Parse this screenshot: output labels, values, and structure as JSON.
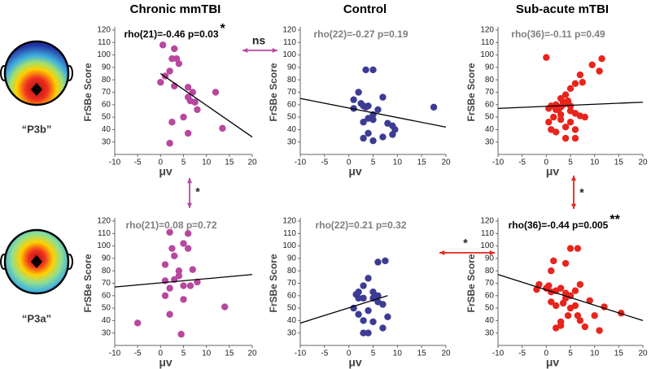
{
  "figure": {
    "labels": [
      "“P3b”",
      "“P3a”"
    ],
    "annotations": [
      {
        "text": "ns",
        "color": "#b8479e"
      },
      {
        "text": "*",
        "color": "#b8479e"
      },
      {
        "text": "*",
        "color": "#e8241c"
      },
      {
        "text": "*",
        "color": "#e8241c"
      }
    ]
  },
  "chart_data": [
    {
      "type": "scatter",
      "title": "Chronic mmTBI",
      "subtitle": "rho(21)=-0.46 p=0.03",
      "stat_mark": "*",
      "stat_color": "#000000",
      "x_label": "μv",
      "y_label": "FrSBe Score",
      "color": "#b8479e",
      "x": [
        0.5,
        3,
        2.5,
        3.5,
        4,
        1,
        2,
        0,
        3,
        6,
        7,
        6,
        6.5,
        7.5,
        8,
        5,
        12,
        13.5,
        2.5,
        2,
        6
      ],
      "values": [
        108,
        105,
        97,
        97,
        93,
        83,
        87,
        78,
        75,
        74,
        70,
        66,
        63,
        62,
        56,
        50,
        70,
        41,
        46,
        29,
        37
      ],
      "fit": {
        "x": [
          0,
          20
        ],
        "values": [
          85,
          34
        ]
      },
      "xlim": [
        -10,
        20
      ],
      "ylim": [
        20,
        120
      ],
      "xticks": [
        -10,
        -5,
        0,
        5,
        10,
        15,
        20
      ],
      "yticks": [
        30,
        40,
        50,
        60,
        70,
        80,
        90,
        100,
        110,
        120
      ]
    },
    {
      "type": "scatter",
      "title": "Control",
      "subtitle": "rho(22)=-0.27 p=0.19",
      "stat_color": "#7f7f7f",
      "x_label": "μv",
      "y_label": "FrSBe Score",
      "color": "#3c3c94",
      "x": [
        3.5,
        5,
        2,
        1,
        2.5,
        3,
        3.5,
        4,
        5,
        6,
        7,
        1,
        3,
        4,
        5,
        8,
        9,
        9.5,
        4,
        5,
        3,
        17.5,
        7,
        9
      ],
      "values": [
        88,
        88,
        70,
        64,
        61,
        59,
        58,
        59,
        52,
        56,
        66,
        57,
        46,
        49,
        48,
        45,
        43,
        40,
        37,
        31,
        33,
        58,
        34,
        36
      ],
      "fit": {
        "x": [
          -10,
          20
        ],
        "values": [
          65,
          42
        ]
      },
      "xlim": [
        -10,
        20
      ],
      "ylim": [
        20,
        120
      ],
      "xticks": [
        -10,
        -5,
        0,
        5,
        10,
        15,
        20
      ],
      "yticks": [
        30,
        40,
        50,
        60,
        70,
        80,
        90,
        100,
        110,
        120
      ]
    },
    {
      "type": "scatter",
      "title": "Sub-acute mTBI",
      "subtitle": "rho(36)=-0.11 p=0.49",
      "stat_color": "#7f7f7f",
      "x_label": "μv",
      "y_label": "FrSBe Score",
      "color": "#e8241c",
      "x": [
        0,
        11.5,
        9.5,
        11,
        7,
        7.5,
        6,
        5,
        4,
        3,
        3.5,
        2,
        1,
        0.5,
        2,
        3,
        4,
        5,
        6,
        7,
        2.5,
        1.5,
        3,
        8,
        5,
        6,
        4,
        1,
        2,
        3,
        5,
        0.5,
        4,
        6,
        3.5,
        4.5
      ],
      "values": [
        98,
        97,
        92,
        87,
        84,
        78,
        77,
        73,
        68,
        65,
        62,
        60,
        59,
        57,
        56,
        58,
        61,
        59,
        53,
        51,
        56,
        50,
        48,
        50,
        46,
        40,
        42,
        40,
        38,
        52,
        55,
        46,
        33,
        33,
        60,
        63
      ],
      "fit": {
        "x": [
          -10,
          20
        ],
        "values": [
          57,
          62
        ]
      },
      "xlim": [
        -10,
        20
      ],
      "ylim": [
        20,
        120
      ],
      "xticks": [
        -10,
        -5,
        0,
        5,
        10,
        15,
        20
      ],
      "yticks": [
        30,
        40,
        50,
        60,
        70,
        80,
        90,
        100,
        110,
        120
      ]
    },
    {
      "type": "scatter",
      "subtitle": "rho(21)=0.08 p=0.72",
      "stat_color": "#7f7f7f",
      "x_label": "μv",
      "y_label": "FrSBe Score",
      "color": "#b8479e",
      "x": [
        2,
        6,
        5,
        2.5,
        6,
        3,
        1,
        4,
        7,
        4,
        8,
        3,
        6.5,
        1,
        5,
        2,
        1,
        -5,
        4.5,
        14,
        5,
        2
      ],
      "values": [
        111,
        110,
        102,
        98,
        98,
        92,
        85,
        80,
        81,
        76,
        71,
        73,
        68,
        72,
        68,
        66,
        60,
        38,
        29,
        51,
        57,
        45
      ],
      "fit": {
        "x": [
          -10,
          20
        ],
        "values": [
          67,
          77
        ]
      },
      "xlim": [
        -10,
        20
      ],
      "ylim": [
        20,
        120
      ],
      "xticks": [
        -10,
        -5,
        0,
        5,
        10,
        15,
        20
      ],
      "yticks": [
        30,
        40,
        50,
        60,
        70,
        80,
        90,
        100,
        110,
        120
      ]
    },
    {
      "type": "scatter",
      "subtitle": "rho(22)=0.21 p=0.32",
      "stat_color": "#7f7f7f",
      "x_label": "μv",
      "y_label": "FrSBe Score",
      "color": "#3c3c94",
      "x": [
        6,
        7.5,
        4,
        3,
        2,
        5,
        6,
        1.5,
        2,
        3,
        5,
        6,
        7,
        1,
        4,
        2,
        3,
        5,
        7,
        3,
        4,
        8
      ],
      "values": [
        87,
        88,
        74,
        68,
        63,
        63,
        60,
        61,
        58,
        58,
        58,
        55,
        53,
        50,
        48,
        45,
        40,
        39,
        34,
        30,
        30,
        43
      ],
      "fit": {
        "x": [
          -10,
          8
        ],
        "values": [
          38,
          60
        ]
      },
      "xlim": [
        -10,
        20
      ],
      "ylim": [
        20,
        120
      ],
      "xticks": [
        -10,
        -5,
        0,
        5,
        10,
        15,
        20
      ],
      "yticks": [
        30,
        40,
        50,
        60,
        70,
        80,
        90,
        100,
        110,
        120
      ]
    },
    {
      "type": "scatter",
      "subtitle": "rho(36)=-0.44 p=0.005",
      "stat_mark": "**",
      "stat_color": "#000000",
      "x_label": "μv",
      "y_label": "FrSBe Score",
      "color": "#e8241c",
      "x": [
        5,
        6.5,
        1.5,
        4,
        -1.5,
        1,
        0,
        2,
        3,
        5,
        6,
        7,
        4,
        2,
        0.5,
        3.5,
        5,
        1,
        9,
        12,
        15.5,
        10,
        6.5,
        7,
        3,
        4.5,
        2,
        8,
        1,
        -2,
        5,
        6,
        11,
        3,
        4
      ],
      "values": [
        98,
        98,
        88,
        86,
        69,
        80,
        66,
        64,
        66,
        60,
        64,
        69,
        58,
        52,
        68,
        54,
        60,
        63,
        56,
        51,
        46,
        44,
        44,
        40,
        36,
        44,
        34,
        35,
        55,
        65,
        50,
        52,
        32,
        39,
        62
      ],
      "fit": {
        "x": [
          -10,
          20
        ],
        "values": [
          77,
          40
        ]
      },
      "xlim": [
        -10,
        20
      ],
      "ylim": [
        20,
        120
      ],
      "xticks": [
        -10,
        -5,
        0,
        5,
        10,
        15,
        20
      ],
      "yticks": [
        30,
        40,
        50,
        60,
        70,
        80,
        90,
        100,
        110,
        120
      ]
    }
  ]
}
